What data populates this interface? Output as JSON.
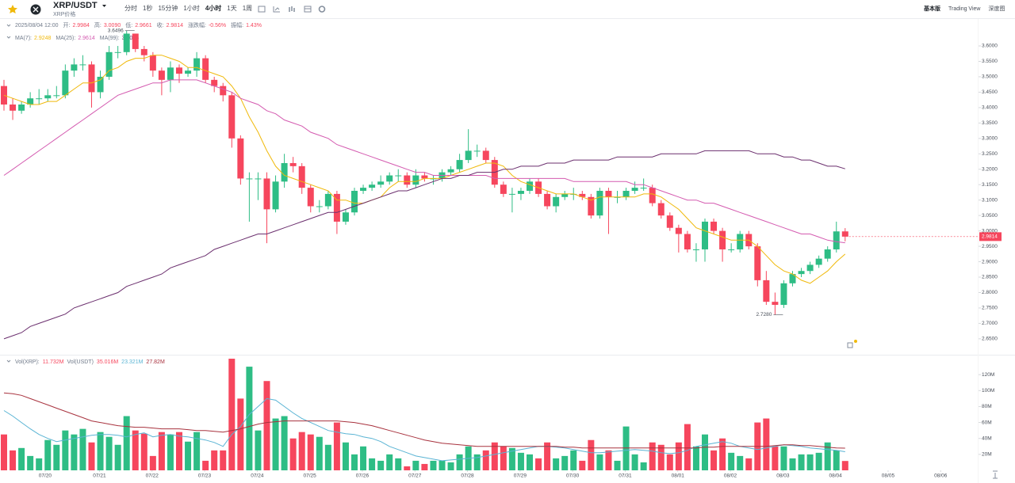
{
  "header": {
    "symbol": "XRP/USDT",
    "subtitle": "XRP价格",
    "intervals": [
      "分时",
      "1秒",
      "15分钟",
      "1小时",
      "4小时",
      "1天",
      "1周"
    ],
    "views": [
      "基本版",
      "Trading View",
      "深度图"
    ]
  },
  "info": {
    "time": "2025/08/04 12:00",
    "fields": [
      {
        "label": "开:",
        "value": "2.9984"
      },
      {
        "label": "高:",
        "value": "3.0090"
      },
      {
        "label": "低:",
        "value": "2.9661"
      },
      {
        "label": "收:",
        "value": "2.9814"
      },
      {
        "label": "涨跌幅:",
        "value": "-0.56%"
      },
      {
        "label": "振幅:",
        "value": "1.43%"
      }
    ]
  },
  "vol_legend": [
    "Vol(XRP):",
    "11.732M",
    "Vol(USDT)",
    "35.016M",
    "23.321M",
    "27.82M"
  ],
  "chart_data": {
    "type": "candlestick",
    "up_color": "#2ebd85",
    "down_color": "#f6465d",
    "xticks": [
      {
        "value": 4.7,
        "label": "07/20"
      },
      {
        "value": 10.9,
        "label": "07/21"
      },
      {
        "value": 16.9,
        "label": "07/22"
      },
      {
        "value": 22.9,
        "label": "07/23"
      },
      {
        "value": 28.9,
        "label": "07/24"
      },
      {
        "value": 34.9,
        "label": "07/25"
      },
      {
        "value": 40.9,
        "label": "07/26"
      },
      {
        "value": 46.9,
        "label": "07/27"
      },
      {
        "value": 52.9,
        "label": "07/28"
      },
      {
        "value": 58.9,
        "label": "07/29"
      },
      {
        "value": 64.9,
        "label": "07/30"
      },
      {
        "value": 70.9,
        "label": "07/31"
      },
      {
        "value": 76.9,
        "label": "08/01"
      },
      {
        "value": 82.9,
        "label": "08/02"
      },
      {
        "value": 88.9,
        "label": "08/03"
      },
      {
        "value": 94.9,
        "label": "08/04"
      },
      {
        "value": 100.9,
        "label": "08/05"
      },
      {
        "value": 106.9,
        "label": "08/06"
      }
    ],
    "open": [
      3.47,
      3.41,
      3.39,
      3.41,
      3.43,
      3.43,
      3.44,
      3.44,
      3.52,
      3.54,
      3.54,
      3.45,
      3.5,
      3.58,
      3.58,
      3.64,
      3.59,
      3.57,
      3.52,
      3.49,
      3.53,
      3.51,
      3.52,
      3.56,
      3.49,
      3.47,
      3.44,
      3.3,
      3.17,
      3.17,
      3.17,
      3.07,
      3.16,
      3.22,
      3.21,
      3.14,
      3.08,
      3.08,
      3.12,
      3.03,
      3.06,
      3.13,
      3.14,
      3.15,
      3.16,
      3.18,
      3.18,
      3.15,
      3.18,
      3.17,
      3.17,
      3.19,
      3.2,
      3.23,
      3.26,
      3.26,
      3.23,
      3.15,
      3.12,
      3.12,
      3.13,
      3.16,
      3.12,
      3.08,
      3.11,
      3.12,
      3.12,
      3.11,
      3.05,
      3.13,
      3.11,
      3.11,
      3.13,
      3.14,
      3.14,
      3.09,
      3.05,
      3.01,
      2.99,
      2.94,
      2.94,
      3.03,
      3.0,
      2.94,
      2.94,
      2.99,
      2.95,
      2.84,
      2.77,
      2.76,
      2.83,
      2.86,
      2.87,
      2.89,
      2.91,
      2.94,
      2.9984
    ],
    "high": [
      3.49,
      3.43,
      3.42,
      3.45,
      3.46,
      3.46,
      3.47,
      3.54,
      3.56,
      3.57,
      3.55,
      3.52,
      3.6,
      3.6,
      3.6496,
      3.64,
      3.6,
      3.58,
      3.53,
      3.55,
      3.54,
      3.53,
      3.58,
      3.57,
      3.5,
      3.48,
      3.45,
      3.31,
      3.19,
      3.19,
      3.19,
      3.18,
      3.25,
      3.24,
      3.22,
      3.15,
      3.1,
      3.13,
      3.13,
      3.07,
      3.14,
      3.15,
      3.16,
      3.18,
      3.19,
      3.2,
      3.19,
      3.2,
      3.19,
      3.18,
      3.2,
      3.21,
      3.25,
      3.33,
      3.28,
      3.27,
      3.24,
      3.16,
      3.14,
      3.14,
      3.17,
      3.17,
      3.13,
      3.12,
      3.13,
      3.14,
      3.13,
      3.12,
      3.14,
      3.14,
      3.13,
      3.14,
      3.16,
      3.17,
      3.15,
      3.1,
      3.06,
      3.02,
      3.0,
      2.96,
      3.04,
      3.04,
      3.01,
      2.96,
      3.0,
      3.0,
      2.96,
      2.87,
      2.8,
      2.84,
      2.87,
      2.88,
      2.9,
      2.92,
      2.95,
      3.03,
      3.009
    ],
    "low": [
      3.39,
      3.36,
      3.38,
      3.4,
      3.41,
      3.42,
      3.43,
      3.43,
      3.5,
      3.52,
      3.4,
      3.43,
      3.49,
      3.56,
      3.57,
      3.58,
      3.55,
      3.5,
      3.44,
      3.45,
      3.48,
      3.5,
      3.5,
      3.48,
      3.45,
      3.42,
      3.27,
      3.15,
      3.03,
      3.1,
      2.96,
      3.06,
      3.14,
      3.19,
      3.12,
      3.06,
      3.06,
      3.07,
      2.99,
      3.02,
      3.05,
      3.12,
      3.13,
      3.14,
      3.15,
      3.16,
      3.14,
      3.14,
      3.16,
      3.15,
      3.16,
      3.18,
      3.19,
      3.22,
      3.24,
      3.22,
      3.14,
      3.11,
      3.06,
      3.1,
      3.12,
      3.11,
      3.07,
      3.06,
      3.1,
      3.1,
      3.1,
      3.04,
      3.04,
      2.99,
      3.09,
      3.1,
      3.12,
      3.13,
      3.08,
      3.04,
      3.0,
      2.93,
      2.93,
      2.9,
      2.9,
      2.99,
      2.9,
      2.93,
      2.93,
      2.94,
      2.82,
      2.76,
      2.728,
      2.75,
      2.82,
      2.85,
      2.86,
      2.88,
      2.9,
      2.93,
      2.9661
    ],
    "close": [
      3.41,
      3.39,
      3.41,
      3.43,
      3.43,
      3.44,
      3.44,
      3.52,
      3.54,
      3.54,
      3.45,
      3.5,
      3.58,
      3.58,
      3.64,
      3.59,
      3.57,
      3.52,
      3.49,
      3.53,
      3.51,
      3.52,
      3.56,
      3.49,
      3.47,
      3.44,
      3.3,
      3.17,
      3.17,
      3.17,
      3.07,
      3.16,
      3.22,
      3.21,
      3.14,
      3.08,
      3.08,
      3.12,
      3.03,
      3.06,
      3.13,
      3.14,
      3.15,
      3.16,
      3.18,
      3.18,
      3.15,
      3.18,
      3.17,
      3.17,
      3.19,
      3.2,
      3.23,
      3.26,
      3.26,
      3.23,
      3.15,
      3.12,
      3.12,
      3.13,
      3.16,
      3.12,
      3.08,
      3.11,
      3.12,
      3.12,
      3.11,
      3.05,
      3.13,
      3.11,
      3.11,
      3.13,
      3.14,
      3.14,
      3.09,
      3.05,
      3.01,
      2.99,
      2.94,
      2.94,
      3.03,
      3.0,
      2.94,
      2.94,
      2.99,
      2.95,
      2.84,
      2.77,
      2.76,
      2.83,
      2.86,
      2.87,
      2.89,
      2.91,
      2.94,
      2.9984,
      2.9814
    ],
    "ylim": [
      2.606,
      3.672
    ],
    "yticks": [
      {
        "value": 2.65,
        "label": "2.6500"
      },
      {
        "value": 2.7,
        "label": "2.7000"
      },
      {
        "value": 2.75,
        "label": "2.7500"
      },
      {
        "value": 2.8,
        "label": "2.8000"
      },
      {
        "value": 2.85,
        "label": "2.8500"
      },
      {
        "value": 2.9,
        "label": "2.9000"
      },
      {
        "value": 2.95,
        "label": "2.9500"
      },
      {
        "value": 3.0,
        "label": "3.0000"
      },
      {
        "value": 3.05,
        "label": "3.0500"
      },
      {
        "value": 3.1,
        "label": "3.1000"
      },
      {
        "value": 3.15,
        "label": "3.1500"
      },
      {
        "value": 3.2,
        "label": "3.2000"
      },
      {
        "value": 3.25,
        "label": "3.2500"
      },
      {
        "value": 3.3,
        "label": "3.3000"
      },
      {
        "value": 3.35,
        "label": "3.3500"
      },
      {
        "value": 3.4,
        "label": "3.4000"
      },
      {
        "value": 3.45,
        "label": "3.4500"
      },
      {
        "value": 3.5,
        "label": "3.5000"
      },
      {
        "value": 3.55,
        "label": "3.5500"
      },
      {
        "value": 3.6,
        "label": "3.6000"
      }
    ],
    "annotations": [
      {
        "index": 14,
        "value": 3.6496,
        "label": "3.6496"
      },
      {
        "index": 88,
        "value": 2.728,
        "label": "2.7280"
      }
    ],
    "last_price": {
      "value": 2.9814,
      "label": "2.9814"
    },
    "ma_lines": [
      {
        "name": "MA(7):",
        "color": "#f0b90b",
        "values": [
          3.44,
          3.43,
          3.42,
          3.41,
          3.41,
          3.42,
          3.42,
          3.44,
          3.46,
          3.48,
          3.48,
          3.49,
          3.52,
          3.53,
          3.55,
          3.56,
          3.56,
          3.57,
          3.57,
          3.56,
          3.55,
          3.53,
          3.53,
          3.52,
          3.51,
          3.5,
          3.47,
          3.43,
          3.37,
          3.32,
          3.26,
          3.21,
          3.18,
          3.17,
          3.16,
          3.15,
          3.14,
          3.13,
          3.1,
          3.1,
          3.09,
          3.09,
          3.1,
          3.11,
          3.14,
          3.16,
          3.16,
          3.16,
          3.17,
          3.17,
          3.17,
          3.18,
          3.19,
          3.2,
          3.21,
          3.22,
          3.22,
          3.21,
          3.18,
          3.16,
          3.15,
          3.14,
          3.13,
          3.12,
          3.12,
          3.12,
          3.11,
          3.1,
          3.11,
          3.11,
          3.11,
          3.11,
          3.11,
          3.12,
          3.12,
          3.11,
          3.09,
          3.07,
          3.04,
          3.01,
          3.0,
          2.99,
          2.98,
          2.97,
          2.97,
          2.97,
          2.95,
          2.92,
          2.89,
          2.87,
          2.86,
          2.84,
          2.83,
          2.85,
          2.87,
          2.9,
          2.9248
        ]
      },
      {
        "name": "MA(25):",
        "color": "#d45bb0",
        "values": [
          3.18,
          3.2,
          3.22,
          3.24,
          3.26,
          3.28,
          3.3,
          3.32,
          3.34,
          3.36,
          3.38,
          3.4,
          3.42,
          3.44,
          3.45,
          3.46,
          3.47,
          3.48,
          3.48,
          3.49,
          3.49,
          3.49,
          3.49,
          3.48,
          3.47,
          3.46,
          3.45,
          3.43,
          3.42,
          3.41,
          3.39,
          3.38,
          3.36,
          3.35,
          3.34,
          3.32,
          3.31,
          3.3,
          3.28,
          3.27,
          3.26,
          3.25,
          3.24,
          3.23,
          3.22,
          3.21,
          3.2,
          3.19,
          3.19,
          3.18,
          3.18,
          3.18,
          3.18,
          3.18,
          3.18,
          3.18,
          3.17,
          3.17,
          3.17,
          3.17,
          3.17,
          3.17,
          3.17,
          3.17,
          3.17,
          3.16,
          3.16,
          3.16,
          3.16,
          3.16,
          3.16,
          3.16,
          3.15,
          3.15,
          3.14,
          3.13,
          3.12,
          3.11,
          3.1,
          3.1,
          3.09,
          3.09,
          3.08,
          3.07,
          3.06,
          3.05,
          3.04,
          3.03,
          3.02,
          3.01,
          3.0,
          2.99,
          2.99,
          2.98,
          2.97,
          2.965,
          2.9614
        ]
      },
      {
        "name": "MA(99):",
        "color": "#6b2f6e",
        "values": [
          2.65,
          2.66,
          2.67,
          2.69,
          2.7,
          2.71,
          2.72,
          2.73,
          2.75,
          2.76,
          2.77,
          2.78,
          2.79,
          2.8,
          2.82,
          2.83,
          2.84,
          2.85,
          2.86,
          2.88,
          2.89,
          2.9,
          2.91,
          2.92,
          2.94,
          2.95,
          2.96,
          2.97,
          2.98,
          2.99,
          2.99,
          3.0,
          3.01,
          3.02,
          3.03,
          3.04,
          3.05,
          3.06,
          3.06,
          3.07,
          3.08,
          3.09,
          3.1,
          3.11,
          3.12,
          3.13,
          3.13,
          3.14,
          3.15,
          3.16,
          3.17,
          3.17,
          3.18,
          3.18,
          3.19,
          3.19,
          3.19,
          3.2,
          3.2,
          3.21,
          3.21,
          3.21,
          3.22,
          3.22,
          3.22,
          3.23,
          3.23,
          3.23,
          3.23,
          3.23,
          3.24,
          3.24,
          3.24,
          3.24,
          3.24,
          3.25,
          3.25,
          3.25,
          3.25,
          3.25,
          3.26,
          3.26,
          3.26,
          3.26,
          3.26,
          3.26,
          3.25,
          3.25,
          3.25,
          3.24,
          3.24,
          3.23,
          3.23,
          3.22,
          3.21,
          3.21,
          3.2015
        ]
      }
    ],
    "volume": {
      "values": [
        45,
        25,
        28,
        18,
        15,
        38,
        32,
        50,
        45,
        52,
        35,
        48,
        42,
        32,
        68,
        50,
        46,
        18,
        48,
        45,
        48,
        36,
        48,
        12,
        25,
        25,
        140,
        90,
        130,
        50,
        112,
        65,
        68,
        40,
        48,
        45,
        42,
        32,
        60,
        35,
        20,
        30,
        15,
        12,
        20,
        15,
        5,
        12,
        8,
        12,
        12,
        10,
        20,
        30,
        20,
        25,
        35,
        30,
        28,
        22,
        20,
        15,
        35,
        15,
        18,
        25,
        12,
        38,
        20,
        25,
        12,
        55,
        20,
        10,
        35,
        32,
        20,
        35,
        58,
        30,
        45,
        25,
        40,
        22,
        18,
        15,
        60,
        65,
        30,
        30,
        15,
        20,
        20,
        22,
        35,
        25,
        11.732
      ],
      "ylim": [
        0,
        143
      ],
      "yticks": [
        {
          "value": 20,
          "label": "20M"
        },
        {
          "value": 40,
          "label": "40M"
        },
        {
          "value": 60,
          "label": "60M"
        },
        {
          "value": 80,
          "label": "80M"
        },
        {
          "value": 100,
          "label": "100M"
        },
        {
          "value": 120,
          "label": "120M"
        }
      ],
      "ma_lines": [
        {
          "color": "#5ab4d4",
          "values": [
            75,
            68,
            60,
            52,
            45,
            40,
            36,
            38,
            40,
            42,
            44,
            45,
            45,
            44,
            42,
            45,
            47,
            42,
            44,
            45,
            43,
            42,
            40,
            38,
            35,
            30,
            45,
            55,
            70,
            80,
            90,
            88,
            80,
            72,
            65,
            60,
            55,
            50,
            48,
            46,
            45,
            42,
            40,
            36,
            30,
            26,
            22,
            18,
            16,
            14,
            12,
            13,
            14,
            15,
            16,
            18,
            20,
            22,
            24,
            26,
            28,
            30,
            30,
            29,
            28,
            26,
            24,
            22,
            22,
            23,
            24,
            25,
            26,
            25,
            24,
            22,
            21,
            22,
            25,
            30,
            32,
            34,
            36,
            34,
            30,
            28,
            26,
            28,
            30,
            32,
            31,
            30,
            28,
            27,
            26,
            25,
            23.321
          ]
        },
        {
          "color": "#a8323e",
          "values": [
            97,
            96,
            94,
            90,
            86,
            82,
            78,
            74,
            70,
            66,
            62,
            60,
            58,
            56,
            55,
            54,
            54,
            53,
            52,
            52,
            52,
            51,
            50,
            50,
            49,
            48,
            50,
            52,
            55,
            58,
            60,
            61,
            62,
            62,
            62,
            62,
            62,
            62,
            62,
            61,
            60,
            58,
            56,
            53,
            50,
            47,
            44,
            41,
            38,
            36,
            34,
            33,
            32,
            31,
            30,
            30,
            30,
            30,
            30,
            30,
            30,
            30,
            30,
            30,
            29,
            29,
            28,
            28,
            28,
            28,
            28,
            28,
            28,
            28,
            28,
            28,
            28,
            28,
            28,
            28,
            29,
            29,
            30,
            30,
            30,
            30,
            30,
            30,
            31,
            32,
            32,
            31,
            31,
            30,
            29,
            28,
            27.82
          ]
        }
      ]
    }
  }
}
